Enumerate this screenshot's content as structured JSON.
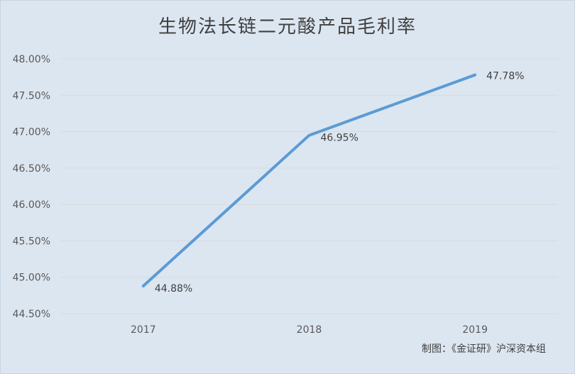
{
  "chart_data": {
    "type": "line",
    "title": "生物法长链二元酸产品毛利率",
    "categories": [
      "2017",
      "2018",
      "2019"
    ],
    "series": [
      {
        "values": [
          44.88,
          46.95,
          47.78
        ],
        "labels": [
          "44.88%",
          "46.95%",
          "47.78%"
        ]
      }
    ],
    "ylim": [
      44.5,
      48.0
    ],
    "yticks": [
      "44.50%",
      "45.00%",
      "45.50%",
      "46.00%",
      "46.50%",
      "47.00%",
      "47.50%",
      "48.00%"
    ],
    "ytick_values": [
      44.5,
      45.0,
      45.5,
      46.0,
      46.5,
      47.0,
      47.5,
      48.0
    ],
    "grid": true,
    "colors": {
      "line": "#5b9bd5",
      "grid": "#d9d9d9",
      "background": "#dce6f1"
    }
  },
  "credit": "制图：《金证研》沪深资本组"
}
